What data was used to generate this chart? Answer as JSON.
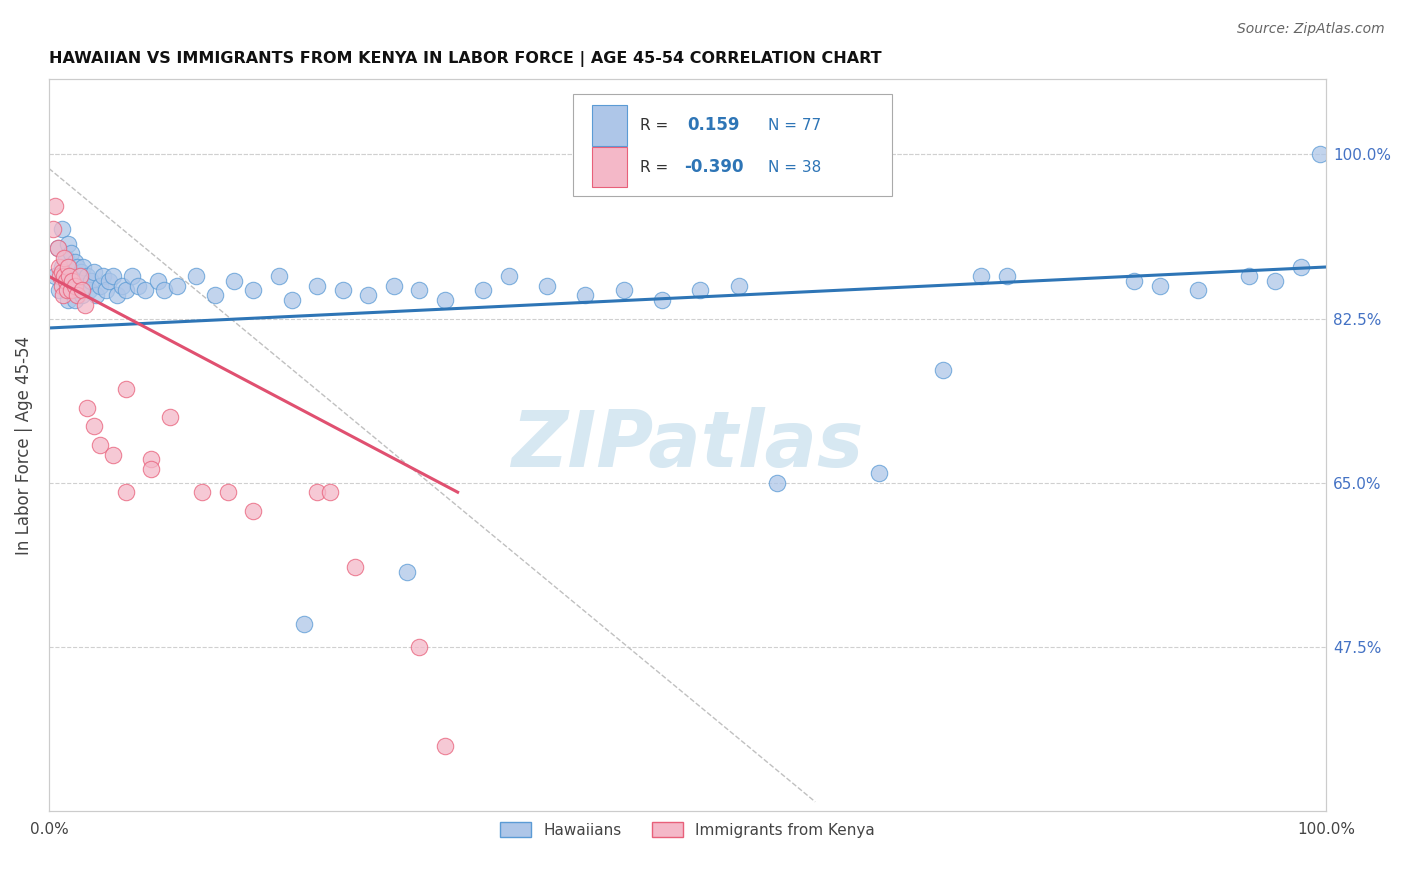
{
  "title": "HAWAIIAN VS IMMIGRANTS FROM KENYA IN LABOR FORCE | AGE 45-54 CORRELATION CHART",
  "source": "Source: ZipAtlas.com",
  "ylabel": "In Labor Force | Age 45-54",
  "yticks": [
    0.475,
    0.65,
    0.825,
    1.0
  ],
  "ytick_labels": [
    "47.5%",
    "65.0%",
    "82.5%",
    "100.0%"
  ],
  "xlim": [
    0.0,
    1.0
  ],
  "ylim": [
    0.3,
    1.08
  ],
  "blue_color": "#aec6e8",
  "blue_edge_color": "#5b9bd5",
  "pink_color": "#f4b8c8",
  "pink_edge_color": "#e8607a",
  "blue_line_color": "#2e75b6",
  "pink_line_color": "#e05070",
  "watermark": "ZIPatlas",
  "watermark_color": "#d0e4f0",
  "hawaiians_label": "Hawaiians",
  "kenya_label": "Immigrants from Kenya",
  "R_blue": 0.159,
  "N_blue": 77,
  "R_pink": -0.39,
  "N_pink": 38,
  "blue_scatter_x": [
    0.005,
    0.007,
    0.008,
    0.01,
    0.01,
    0.012,
    0.013,
    0.014,
    0.015,
    0.015,
    0.016,
    0.017,
    0.018,
    0.019,
    0.02,
    0.02,
    0.021,
    0.022,
    0.023,
    0.024,
    0.025,
    0.026,
    0.027,
    0.028,
    0.03,
    0.031,
    0.033,
    0.035,
    0.037,
    0.04,
    0.042,
    0.045,
    0.047,
    0.05,
    0.053,
    0.057,
    0.06,
    0.065,
    0.07,
    0.075,
    0.085,
    0.09,
    0.1,
    0.115,
    0.13,
    0.145,
    0.16,
    0.18,
    0.19,
    0.21,
    0.23,
    0.25,
    0.27,
    0.29,
    0.31,
    0.34,
    0.36,
    0.39,
    0.42,
    0.45,
    0.48,
    0.51,
    0.54,
    0.57,
    0.65,
    0.7,
    0.73,
    0.75,
    0.85,
    0.87,
    0.9,
    0.94,
    0.96,
    0.98,
    0.995,
    0.2,
    0.28
  ],
  "blue_scatter_y": [
    0.87,
    0.9,
    0.855,
    0.88,
    0.92,
    0.875,
    0.89,
    0.86,
    0.845,
    0.905,
    0.875,
    0.895,
    0.86,
    0.875,
    0.885,
    0.845,
    0.87,
    0.88,
    0.855,
    0.865,
    0.875,
    0.85,
    0.88,
    0.86,
    0.87,
    0.855,
    0.865,
    0.875,
    0.85,
    0.86,
    0.87,
    0.855,
    0.865,
    0.87,
    0.85,
    0.86,
    0.855,
    0.87,
    0.86,
    0.855,
    0.865,
    0.855,
    0.86,
    0.87,
    0.85,
    0.865,
    0.855,
    0.87,
    0.845,
    0.86,
    0.855,
    0.85,
    0.86,
    0.855,
    0.845,
    0.855,
    0.87,
    0.86,
    0.85,
    0.855,
    0.845,
    0.855,
    0.86,
    0.65,
    0.66,
    0.77,
    0.87,
    0.87,
    0.865,
    0.86,
    0.855,
    0.87,
    0.865,
    0.88,
    1.0,
    0.5,
    0.555
  ],
  "pink_scatter_x": [
    0.003,
    0.005,
    0.007,
    0.008,
    0.009,
    0.01,
    0.01,
    0.011,
    0.012,
    0.012,
    0.013,
    0.014,
    0.015,
    0.016,
    0.017,
    0.018,
    0.02,
    0.022,
    0.024,
    0.026,
    0.028,
    0.03,
    0.035,
    0.04,
    0.05,
    0.06,
    0.08,
    0.095,
    0.06,
    0.08,
    0.12,
    0.14,
    0.16,
    0.21,
    0.22,
    0.24,
    0.29,
    0.31
  ],
  "pink_scatter_y": [
    0.92,
    0.945,
    0.9,
    0.88,
    0.87,
    0.86,
    0.875,
    0.85,
    0.89,
    0.87,
    0.865,
    0.855,
    0.88,
    0.87,
    0.855,
    0.865,
    0.86,
    0.85,
    0.87,
    0.855,
    0.84,
    0.73,
    0.71,
    0.69,
    0.68,
    0.75,
    0.675,
    0.72,
    0.64,
    0.665,
    0.64,
    0.64,
    0.62,
    0.64,
    0.64,
    0.56,
    0.475,
    0.37
  ],
  "blue_line_x0": 0.0,
  "blue_line_y0": 0.815,
  "blue_line_x1": 1.0,
  "blue_line_y1": 0.88,
  "pink_line_x0": 0.0,
  "pink_line_y0": 0.87,
  "pink_line_x1": 0.32,
  "pink_line_y1": 0.64,
  "dash_line_x0": 0.0,
  "dash_line_y0": 0.985,
  "dash_line_x1": 0.6,
  "dash_line_y1": 0.31
}
